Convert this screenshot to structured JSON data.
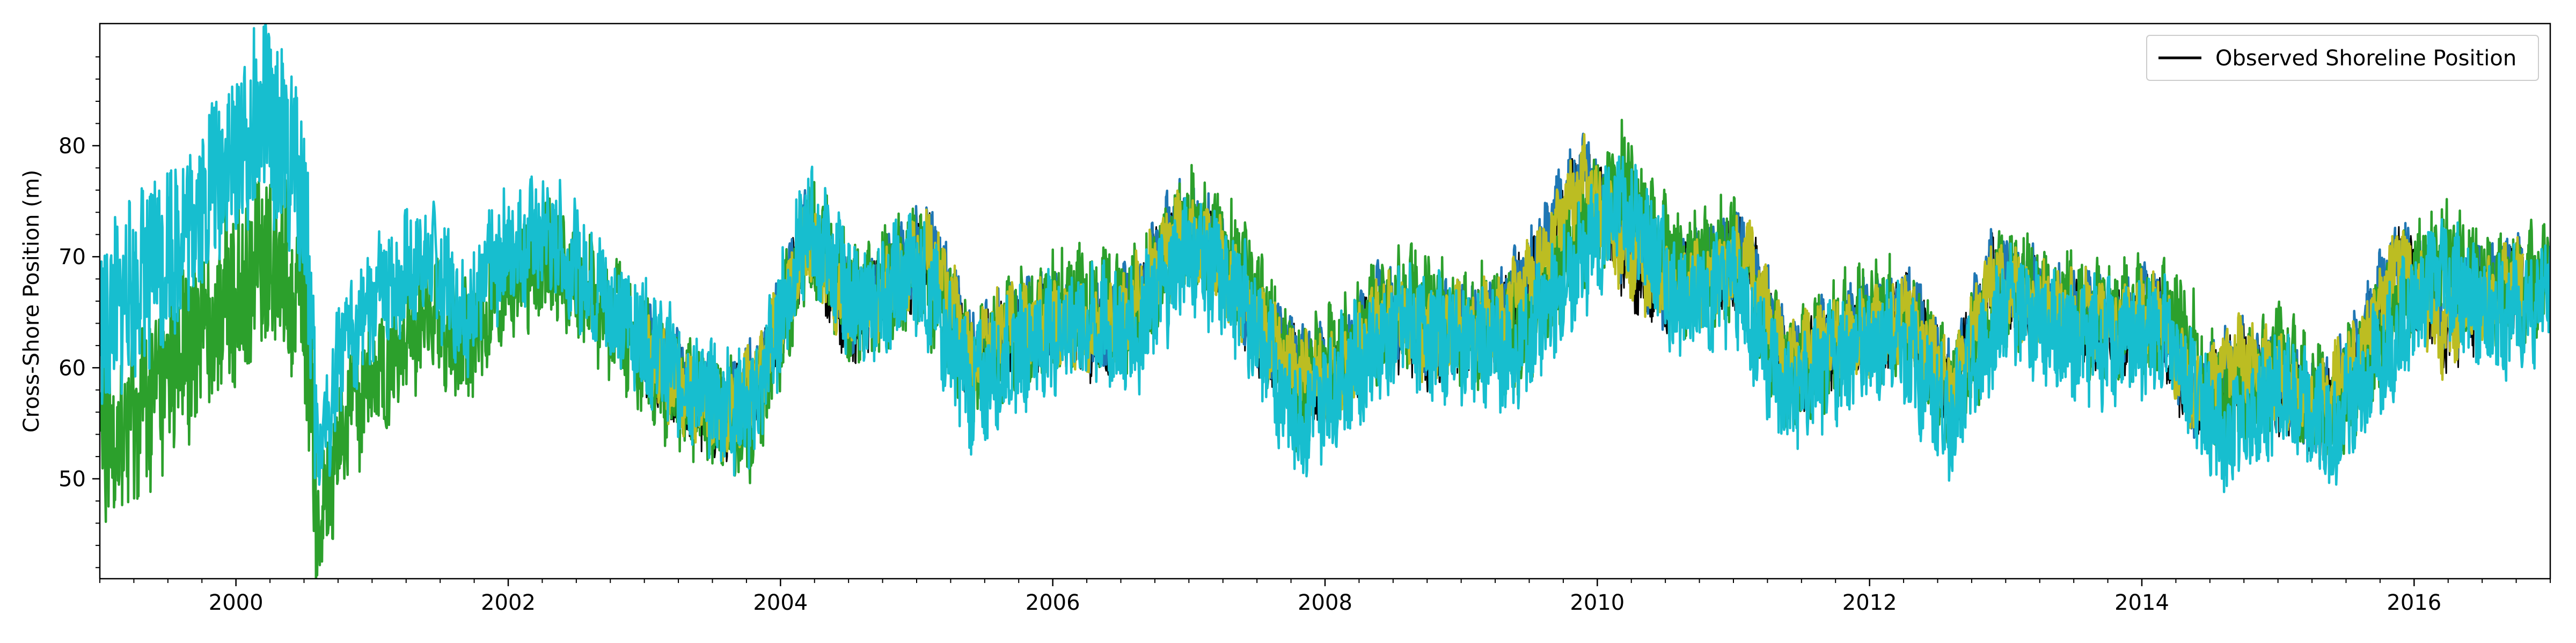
{
  "chart_data": {
    "type": "line",
    "title": "",
    "xlabel": "",
    "ylabel": "Cross-Shore Position (m)",
    "xlim": [
      1999.0,
      2017.0
    ],
    "ylim": [
      41.0,
      91.0
    ],
    "xticks": [
      2000,
      2002,
      2004,
      2006,
      2008,
      2010,
      2012,
      2014,
      2016
    ],
    "xtick_labels": [
      "2000",
      "2002",
      "2004",
      "2006",
      "2008",
      "2010",
      "2012",
      "2014",
      "2016"
    ],
    "yticks": [
      50,
      60,
      70,
      80
    ],
    "ytick_labels": [
      "50",
      "60",
      "70",
      "80"
    ],
    "grid": false,
    "legend": {
      "placement": "top-right",
      "entries": [
        {
          "label": "Observed Shoreline Position",
          "color": "#000000"
        }
      ]
    },
    "series": [
      {
        "name": "Observed Shoreline Position",
        "color": "#000000",
        "x": [
          2003.0,
          2003.3,
          2003.6,
          2003.9,
          2004.2,
          2004.5,
          2004.8,
          2005.1,
          2005.4,
          2005.7,
          2006.0,
          2006.3,
          2006.6,
          2006.9,
          2007.2,
          2007.5,
          2007.8,
          2008.1,
          2008.4,
          2008.7,
          2009.0,
          2009.3,
          2009.6,
          2009.9,
          2010.2,
          2010.5,
          2010.8,
          2011.1,
          2011.4,
          2011.7,
          2012.0,
          2012.3,
          2012.6,
          2012.9,
          2013.2,
          2013.5,
          2013.8,
          2014.1,
          2014.4,
          2014.7,
          2015.0,
          2015.3,
          2015.6,
          2015.9,
          2016.2,
          2016.5,
          2016.8
        ],
        "y": [
          61,
          58,
          55,
          60,
          72,
          64,
          67,
          71,
          60,
          63,
          64,
          62,
          65,
          72,
          70,
          63,
          60,
          58,
          65,
          62,
          63,
          64,
          70,
          77,
          70,
          66,
          68,
          70,
          59,
          62,
          63,
          65,
          57,
          68,
          66,
          64,
          63,
          65,
          56,
          60,
          58,
          55,
          61,
          70,
          63,
          66,
          68
        ]
      },
      {
        "color": "#1f77b4",
        "x": [
          2003.0,
          2003.3,
          2003.6,
          2003.9,
          2004.2,
          2004.5,
          2004.8,
          2005.1,
          2005.4,
          2005.7,
          2006.0,
          2006.3,
          2006.6,
          2006.9,
          2007.2,
          2007.5,
          2007.8,
          2008.1,
          2008.4,
          2008.7,
          2009.0,
          2009.3,
          2009.6,
          2009.9,
          2010.2,
          2010.5,
          2010.8,
          2011.1,
          2011.4,
          2011.7,
          2012.0,
          2012.3,
          2012.6,
          2012.9,
          2013.2,
          2013.5,
          2013.8,
          2014.1,
          2014.4,
          2014.7,
          2015.0,
          2015.3,
          2015.6,
          2015.9,
          2016.2,
          2016.5,
          2016.8
        ],
        "y": [
          62,
          59,
          56,
          61,
          73,
          65,
          68,
          72,
          61,
          64,
          65,
          63,
          66,
          73,
          71,
          64,
          61,
          59,
          66,
          63,
          64,
          65,
          71,
          78,
          71,
          67,
          69,
          71,
          60,
          63,
          64,
          66,
          58,
          69,
          67,
          65,
          64,
          66,
          57,
          61,
          59,
          56,
          62,
          71,
          64,
          67,
          69
        ]
      },
      {
        "color": "#bcbd22",
        "x": [
          2003.0,
          2003.3,
          2003.6,
          2003.9,
          2004.2,
          2004.5,
          2004.8,
          2005.1,
          2005.4,
          2005.7,
          2006.0,
          2006.3,
          2006.6,
          2006.9,
          2007.2,
          2007.5,
          2007.8,
          2008.1,
          2008.4,
          2008.7,
          2009.0,
          2009.3,
          2009.6,
          2009.9,
          2010.2,
          2010.5,
          2010.8,
          2011.1,
          2011.4,
          2011.7,
          2012.0,
          2012.3,
          2012.6,
          2012.9,
          2013.2,
          2013.5,
          2013.8,
          2014.1,
          2014.4,
          2014.7,
          2015.0,
          2015.3,
          2015.6,
          2015.9,
          2016.2,
          2016.5,
          2016.8
        ],
        "y": [
          61,
          58,
          55,
          61,
          72,
          65,
          67,
          71,
          61,
          64,
          64,
          63,
          66,
          72,
          70,
          64,
          60,
          59,
          65,
          63,
          64,
          64,
          70,
          77,
          70,
          67,
          68,
          70,
          60,
          63,
          63,
          65,
          58,
          68,
          66,
          65,
          64,
          65,
          57,
          61,
          59,
          56,
          62,
          70,
          63,
          66,
          68
        ]
      },
      {
        "color": "#2ca02c",
        "x": [
          1999.0,
          1999.3,
          1999.6,
          1999.9,
          2000.2,
          2000.5,
          2000.6,
          2000.8,
          2001.1,
          2001.4,
          2001.7,
          2002.0,
          2002.3,
          2002.6,
          2002.9,
          2003.2,
          2003.5,
          2003.8,
          2004.2,
          2004.6,
          2005.0,
          2005.4,
          2005.8,
          2006.2,
          2006.6,
          2007.0,
          2007.4,
          2007.8,
          2008.2,
          2008.6,
          2009.0,
          2009.4,
          2009.8,
          2010.2,
          2010.6,
          2011.0,
          2011.4,
          2011.8,
          2012.2,
          2012.6,
          2013.0,
          2013.4,
          2013.8,
          2014.2,
          2014.6,
          2015.0,
          2015.4,
          2015.8,
          2016.2,
          2016.6,
          2017.0
        ],
        "y": [
          52,
          56,
          60,
          66,
          70,
          67,
          45,
          55,
          60,
          65,
          62,
          68,
          70,
          66,
          63,
          58,
          56,
          55,
          72,
          65,
          70,
          60,
          64,
          66,
          65,
          73,
          68,
          58,
          62,
          66,
          64,
          63,
          70,
          77,
          68,
          70,
          59,
          63,
          65,
          57,
          68,
          65,
          64,
          65,
          57,
          60,
          56,
          64,
          71,
          66,
          69
        ]
      },
      {
        "color": "#17becf",
        "x": [
          1999.0,
          1999.3,
          1999.6,
          1999.9,
          2000.2,
          2000.5,
          2000.6,
          2000.8,
          2001.1,
          2001.4,
          2001.7,
          2002.0,
          2002.3,
          2002.6,
          2002.9,
          2003.2,
          2003.5,
          2003.8,
          2004.2,
          2004.6,
          2005.0,
          2005.4,
          2005.8,
          2006.2,
          2006.6,
          2007.0,
          2007.4,
          2007.8,
          2008.2,
          2008.6,
          2009.0,
          2009.4,
          2009.8,
          2010.2,
          2010.6,
          2011.0,
          2011.4,
          2011.8,
          2012.2,
          2012.6,
          2013.0,
          2013.4,
          2013.8,
          2014.2,
          2014.6,
          2015.0,
          2015.4,
          2015.8,
          2016.2,
          2016.6,
          2017.0
        ],
        "y": [
          63,
          68,
          72,
          78,
          83,
          76,
          52,
          62,
          67,
          70,
          65,
          71,
          72,
          68,
          64,
          60,
          57,
          56,
          73,
          65,
          69,
          58,
          62,
          64,
          63,
          71,
          66,
          55,
          60,
          64,
          62,
          61,
          68,
          75,
          66,
          68,
          57,
          61,
          63,
          55,
          66,
          63,
          62,
          63,
          53,
          58,
          54,
          62,
          69,
          64,
          67
        ]
      }
    ]
  }
}
